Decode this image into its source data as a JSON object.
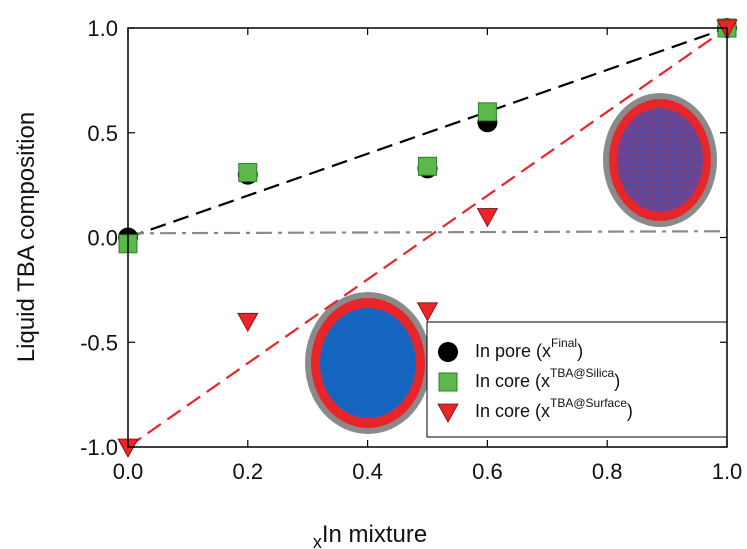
{
  "chart_data": {
    "type": "scatter",
    "xlabel": [
      "x",
      "In mixture"
    ],
    "ylabel": "Liquid TBA composition",
    "xlim": [
      0,
      1
    ],
    "ylim": [
      -1,
      1
    ],
    "xticks": [
      {
        "value": 0,
        "label": "0.0"
      },
      {
        "value": 0.2,
        "label": "0.2"
      },
      {
        "value": 0.4,
        "label": "0.4"
      },
      {
        "value": 0.6,
        "label": "0.6"
      },
      {
        "value": 0.8,
        "label": "0.8"
      },
      {
        "value": 1,
        "label": "1.0"
      }
    ],
    "yticks": [
      {
        "value": -1,
        "label": "-1.0"
      },
      {
        "value": -0.5,
        "label": "-0.5"
      },
      {
        "value": 0,
        "label": "0.0"
      },
      {
        "value": 0.5,
        "label": "0.5"
      },
      {
        "value": 1,
        "label": "1.0"
      }
    ],
    "series": [
      {
        "name": [
          "In pore (x",
          "Final",
          ")"
        ],
        "marker": "circle",
        "color": "#000000",
        "x": [
          0,
          0.2,
          0.5,
          0.6,
          1
        ],
        "y": [
          0,
          0.3,
          0.33,
          0.55,
          1
        ]
      },
      {
        "name": [
          "In core (x",
          "TBA@Silica",
          ")"
        ],
        "marker": "square",
        "color": "#5cb848",
        "x": [
          0,
          0.2,
          0.5,
          0.6,
          1
        ],
        "y": [
          -0.03,
          0.31,
          0.34,
          0.6,
          1
        ]
      },
      {
        "name": [
          "In core (x",
          "TBA@Surface",
          ")"
        ],
        "marker": "triangle",
        "color": "#e8262a",
        "x": [
          0,
          0.2,
          0.5,
          0.6,
          1
        ],
        "y": [
          -1,
          -0.4,
          -0.35,
          0.1,
          1
        ]
      }
    ],
    "lines": [
      {
        "color": "#000000",
        "dash": "dashed",
        "x": [
          0,
          1
        ],
        "y": [
          0,
          1
        ]
      },
      {
        "color": "#e8262a",
        "dash": "dashed",
        "x": [
          0,
          1
        ],
        "y": [
          -1,
          1
        ]
      },
      {
        "color": "#8a8a8a",
        "dash": "dashdot",
        "x": [
          0,
          1
        ],
        "y": [
          0.02,
          0.03
        ]
      }
    ]
  }
}
